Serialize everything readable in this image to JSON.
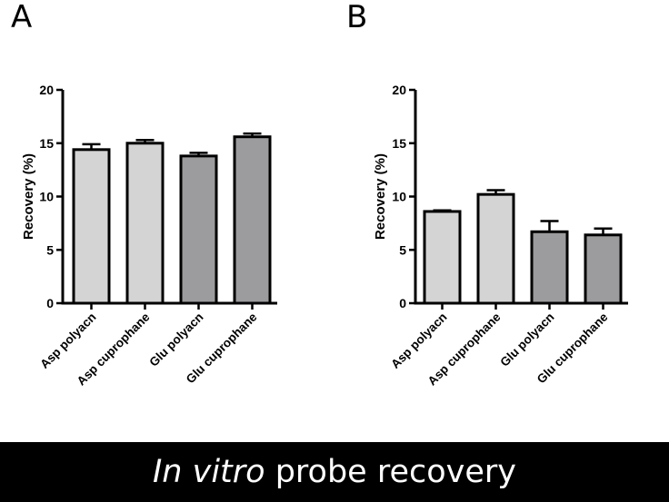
{
  "caption": {
    "italic": "In vitro",
    "rest": "probe recovery"
  },
  "colors": {
    "light_bar": "#d4d4d4",
    "dark_bar": "#9c9c9e",
    "caption_bg": "#000000"
  },
  "chart_data": [
    {
      "panel": "A",
      "type": "bar",
      "ylabel": "Recovery (%)",
      "ylim": [
        0,
        20
      ],
      "yticks": [
        0,
        5,
        10,
        15,
        20
      ],
      "categories": [
        "Asp polyacn",
        "Asp cuprophane",
        "Glu polyacn",
        "Glu cuprophane"
      ],
      "values": [
        14.4,
        15.0,
        13.8,
        15.6
      ],
      "errors": [
        0.5,
        0.3,
        0.3,
        0.3
      ],
      "bar_colors": [
        "#d4d4d4",
        "#d4d4d4",
        "#9c9c9e",
        "#9c9c9e"
      ]
    },
    {
      "panel": "B",
      "type": "bar",
      "ylabel": "Recovery (%)",
      "ylim": [
        0,
        20
      ],
      "yticks": [
        0,
        5,
        10,
        15,
        20
      ],
      "categories": [
        "Asp polyacn",
        "Asp cuprophane",
        "Glu polyacn",
        "Glu cuprophane"
      ],
      "values": [
        8.6,
        10.2,
        6.7,
        6.4
      ],
      "errors": [
        0.1,
        0.4,
        1.0,
        0.6
      ],
      "bar_colors": [
        "#d4d4d4",
        "#d4d4d4",
        "#9c9c9e",
        "#9c9c9e"
      ]
    }
  ]
}
